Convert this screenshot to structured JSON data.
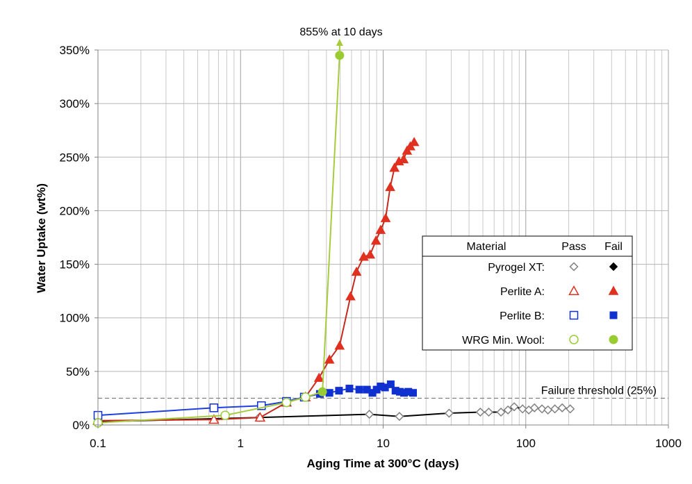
{
  "chart_data": {
    "type": "scatter",
    "xlabel": "Aging Time at 300°C (days)",
    "ylabel": "Water Uptake (wt%)",
    "x_scale": "log",
    "xlim": [
      0.1,
      1000
    ],
    "ylim": [
      0,
      350
    ],
    "x_ticks": [
      "0.1",
      "1",
      "10",
      "100",
      "1000"
    ],
    "y_ticks": [
      "0%",
      "50%",
      "100%",
      "150%",
      "200%",
      "250%",
      "300%",
      "350%"
    ],
    "grid": true,
    "annotations": {
      "threshold": {
        "label": "Failure threshold (25%)",
        "value": 25
      },
      "offscale": {
        "label": "855% at 10 days"
      }
    },
    "legend": {
      "position": "center-right",
      "header": {
        "material": "Material",
        "pass": "Pass",
        "fail": "Fail"
      },
      "rows": [
        {
          "label": "Pyrogel XT:",
          "color": "#000000",
          "marker": "diamond"
        },
        {
          "label": "Perlite A:",
          "color": "#e03020",
          "marker": "triangle"
        },
        {
          "label": "Perlite B:",
          "color": "#1030d0",
          "marker": "square"
        },
        {
          "label": "WRG Min. Wool:",
          "color": "#99cc33",
          "marker": "circle"
        }
      ]
    },
    "series": [
      {
        "name": "Pyrogel XT",
        "color": "#000000",
        "line_color": "#000000",
        "marker": "diamond",
        "points": [
          [
            0.1,
            3,
            "pass"
          ],
          [
            1.35,
            7,
            "pass"
          ],
          [
            8,
            10,
            "pass"
          ],
          [
            13,
            8,
            "pass"
          ],
          [
            29,
            11,
            "pass"
          ],
          [
            48,
            12,
            "pass"
          ],
          [
            55,
            12,
            "pass"
          ],
          [
            67,
            12,
            "pass"
          ],
          [
            75,
            14,
            "pass"
          ],
          [
            83,
            17,
            "pass"
          ],
          [
            95,
            15,
            "pass"
          ],
          [
            105,
            14,
            "pass"
          ],
          [
            115,
            16,
            "pass"
          ],
          [
            130,
            15,
            "pass"
          ],
          [
            143,
            14,
            "pass"
          ],
          [
            160,
            15,
            "pass"
          ],
          [
            180,
            16,
            "pass"
          ],
          [
            205,
            15,
            "pass"
          ]
        ]
      },
      {
        "name": "Perlite A",
        "color": "#e03020",
        "line_color": "#c42a1e",
        "marker": "triangle",
        "points": [
          [
            0.1,
            4,
            "pass"
          ],
          [
            0.65,
            5,
            "pass"
          ],
          [
            1.37,
            7,
            "pass"
          ],
          [
            2.1,
            21,
            "pass"
          ],
          [
            2.85,
            26,
            "pass"
          ],
          [
            3.55,
            44,
            "fail"
          ],
          [
            4.2,
            61,
            "fail"
          ],
          [
            4.95,
            74,
            "fail"
          ],
          [
            5.9,
            120,
            "fail"
          ],
          [
            6.5,
            143,
            "fail"
          ],
          [
            7.3,
            157,
            "fail"
          ],
          [
            8.1,
            159,
            "fail"
          ],
          [
            8.9,
            172,
            "fail"
          ],
          [
            9.6,
            182,
            "fail"
          ],
          [
            10.4,
            193,
            "fail"
          ],
          [
            11.2,
            222,
            "fail"
          ],
          [
            12.0,
            240,
            "fail"
          ],
          [
            12.9,
            246,
            "fail"
          ],
          [
            13.9,
            248,
            "fail"
          ],
          [
            14.7,
            256,
            "fail"
          ],
          [
            15.5,
            260,
            "fail"
          ],
          [
            16.5,
            264,
            "fail"
          ]
        ]
      },
      {
        "name": "Perlite B",
        "color": "#1030d0",
        "line_color": "#1d3fe0",
        "marker": "square",
        "points": [
          [
            0.1,
            9,
            "pass"
          ],
          [
            0.65,
            16,
            "pass"
          ],
          [
            1.4,
            18,
            "pass"
          ],
          [
            2.1,
            22,
            "pass"
          ],
          [
            2.8,
            26,
            "pass"
          ],
          [
            3.6,
            29,
            "fail"
          ],
          [
            4.2,
            30,
            "fail"
          ],
          [
            4.9,
            32,
            "fail"
          ],
          [
            5.8,
            34,
            "fail"
          ],
          [
            6.8,
            33,
            "fail"
          ],
          [
            7.7,
            33,
            "fail"
          ],
          [
            8.4,
            30,
            "fail"
          ],
          [
            9.0,
            33,
            "fail"
          ],
          [
            9.6,
            36,
            "fail"
          ],
          [
            10.3,
            35,
            "fail"
          ],
          [
            11.3,
            38,
            "fail"
          ],
          [
            12.2,
            32,
            "fail"
          ],
          [
            13.1,
            31,
            "fail"
          ],
          [
            14.0,
            30,
            "fail"
          ],
          [
            15.0,
            31,
            "fail"
          ],
          [
            16.2,
            30,
            "fail"
          ]
        ]
      },
      {
        "name": "WRG Min. Wool",
        "color": "#99cc33",
        "line_color": "#a6cc3d",
        "marker": "circle",
        "points": [
          [
            0.1,
            2,
            "pass"
          ],
          [
            0.78,
            9,
            "pass"
          ],
          [
            2.1,
            21,
            "pass"
          ],
          [
            2.85,
            26,
            "pass"
          ],
          [
            3.75,
            31,
            "fail"
          ],
          [
            4.95,
            345,
            "fail"
          ]
        ]
      }
    ]
  }
}
